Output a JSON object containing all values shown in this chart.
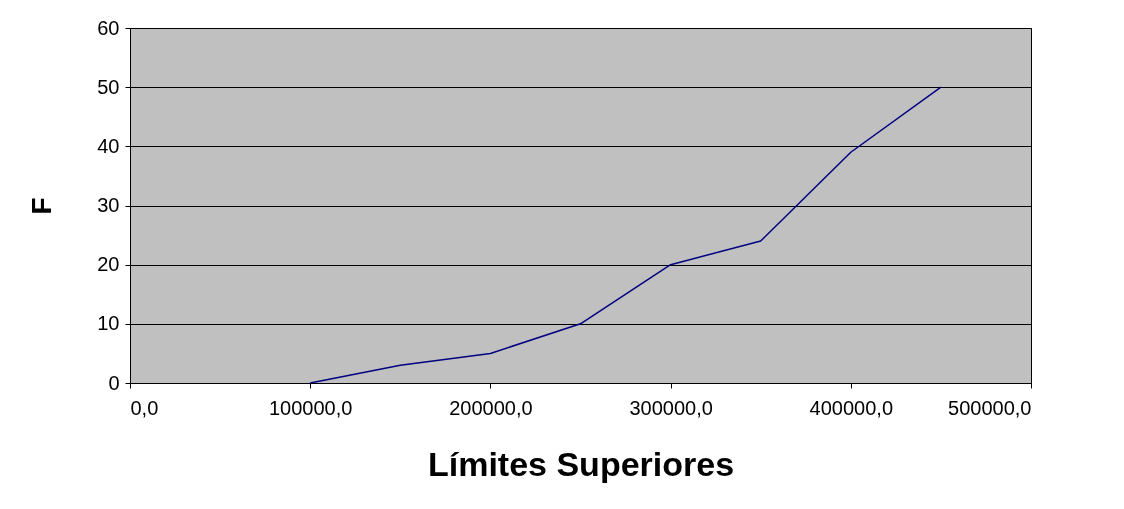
{
  "chart_data": {
    "type": "line",
    "xlabel": "Límites Superiores",
    "ylabel": "F",
    "x": [
      100000,
      150000,
      200000,
      250000,
      300000,
      350000,
      400000,
      450000
    ],
    "series": [
      {
        "color": "#000080",
        "values": [
          0,
          3,
          5,
          10,
          20,
          24,
          39,
          50
        ]
      }
    ],
    "xlim": [
      0,
      500000
    ],
    "xticks": [
      {
        "value": 0,
        "label": "0,0"
      },
      {
        "value": 100000,
        "label": "100000,0"
      },
      {
        "value": 200000,
        "label": "200000,0"
      },
      {
        "value": 300000,
        "label": "300000,0"
      },
      {
        "value": 400000,
        "label": "400000,0"
      },
      {
        "value": 500000,
        "label": "500000,0"
      }
    ],
    "ylim": [
      0,
      60
    ],
    "yticks": [
      0,
      10,
      20,
      30,
      40,
      50,
      60
    ],
    "grid": "y",
    "marker": "none",
    "line_style": "solid"
  }
}
